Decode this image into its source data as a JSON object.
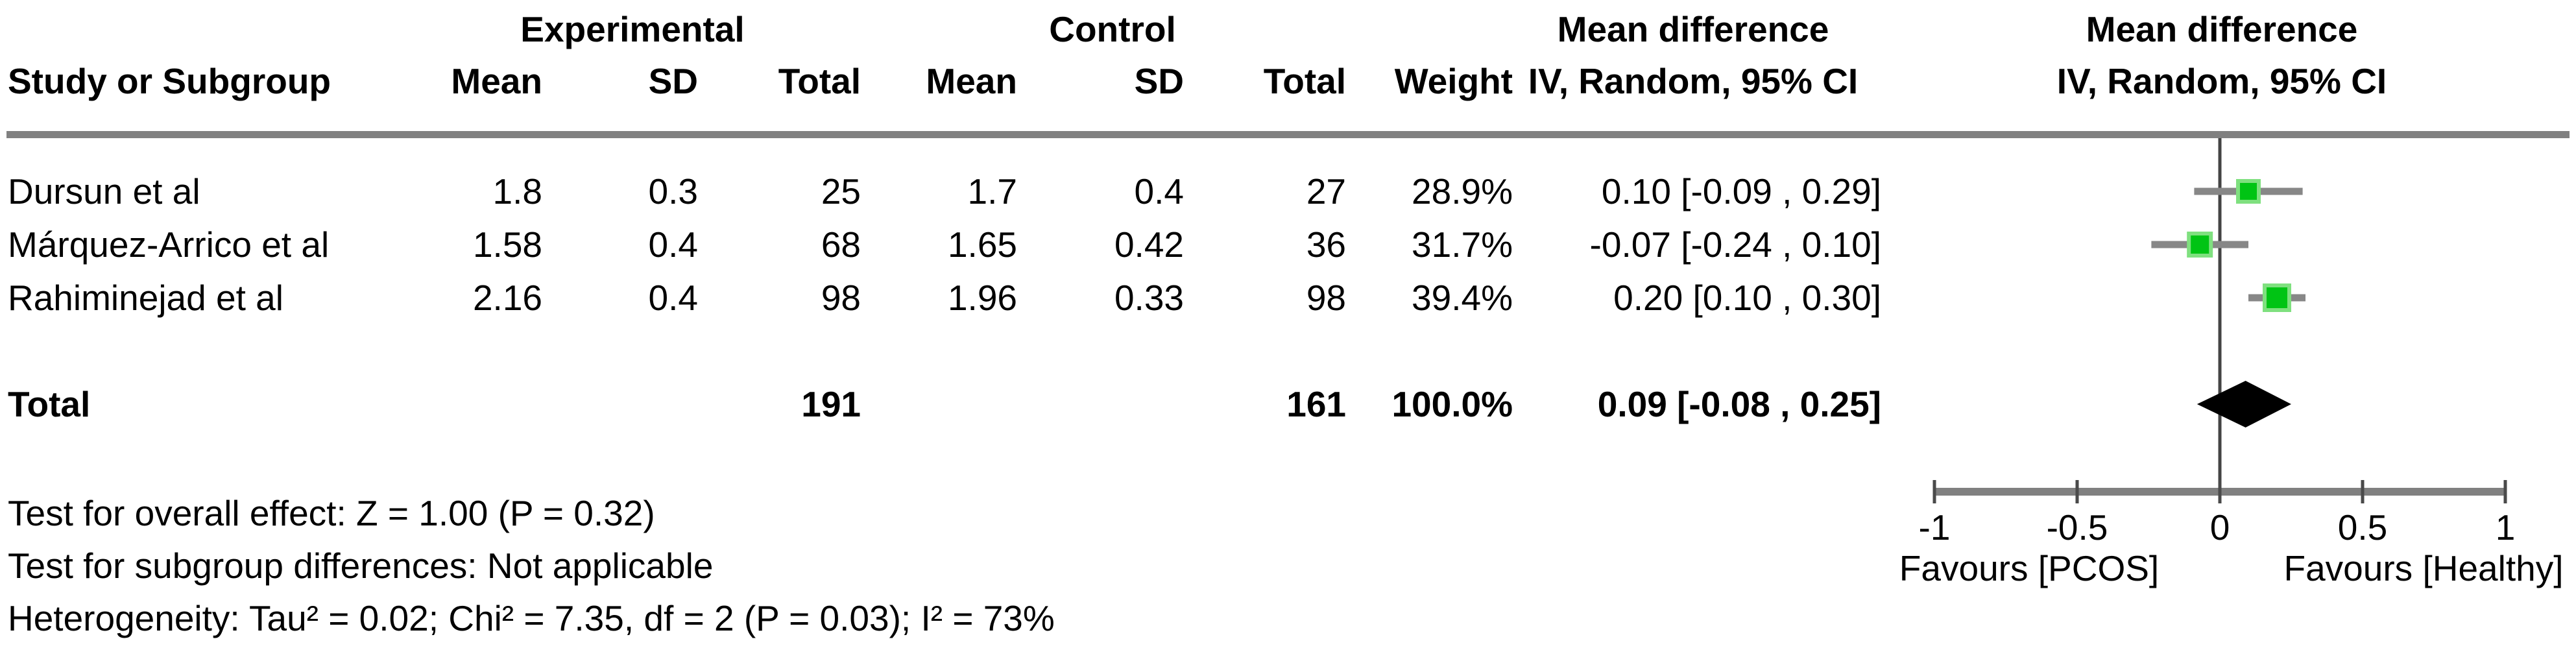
{
  "table": {
    "group_headers": {
      "experimental": "Experimental",
      "control": "Control",
      "mean_difference_text": "Mean difference",
      "mean_difference_plot": "Mean difference"
    },
    "col_headers": {
      "study": "Study or Subgroup",
      "exp_mean": "Mean",
      "exp_sd": "SD",
      "exp_total": "Total",
      "ctrl_mean": "Mean",
      "ctrl_sd": "SD",
      "ctrl_total": "Total",
      "weight": "Weight",
      "iv_text": "IV, Random, 95% CI",
      "iv_plot": "IV, Random, 95% CI"
    },
    "rows": [
      {
        "study": "Dursun et al",
        "exp_mean": "1.8",
        "exp_sd": "0.3",
        "exp_total": "25",
        "ctrl_mean": "1.7",
        "ctrl_sd": "0.4",
        "ctrl_total": "27",
        "weight": "28.9%",
        "md_ci": "0.10 [-0.09 , 0.29]"
      },
      {
        "study": "Márquez-Arrico et al",
        "exp_mean": "1.58",
        "exp_sd": "0.4",
        "exp_total": "68",
        "ctrl_mean": "1.65",
        "ctrl_sd": "0.42",
        "ctrl_total": "36",
        "weight": "31.7%",
        "md_ci": "-0.07 [-0.24 , 0.10]"
      },
      {
        "study": "Rahiminejad et al",
        "exp_mean": "2.16",
        "exp_sd": "0.4",
        "exp_total": "98",
        "ctrl_mean": "1.96",
        "ctrl_sd": "0.33",
        "ctrl_total": "98",
        "weight": "39.4%",
        "md_ci": "0.20 [0.10 , 0.30]"
      }
    ],
    "total_row": {
      "label": "Total",
      "exp_total": "191",
      "ctrl_total": "161",
      "weight": "100.0%",
      "md_ci": "0.09 [-0.08 , 0.25]"
    },
    "footnotes": [
      "Test for overall effect: Z = 1.00 (P = 0.32)",
      "Test for subgroup differences: Not applicable",
      "Heterogeneity: Tau² = 0.02; Chi² = 7.35, df = 2 (P = 0.03); I² = 73%"
    ]
  },
  "chart_data": {
    "type": "forest",
    "effect_measure": "Mean difference",
    "model": "IV, Random, 95% CI",
    "studies": [
      {
        "name": "Dursun et al",
        "estimate": 0.1,
        "ci_low": -0.09,
        "ci_high": 0.29,
        "weight_pct": 28.9
      },
      {
        "name": "Márquez-Arrico et al",
        "estimate": -0.07,
        "ci_low": -0.24,
        "ci_high": 0.1,
        "weight_pct": 31.7
      },
      {
        "name": "Rahiminejad et al",
        "estimate": 0.2,
        "ci_low": 0.1,
        "ci_high": 0.3,
        "weight_pct": 39.4
      }
    ],
    "total": {
      "estimate": 0.09,
      "ci_low": -0.08,
      "ci_high": 0.25
    },
    "axis": {
      "min": -1,
      "max": 1,
      "ticks": [
        -1,
        -0.5,
        0,
        0.5,
        1
      ],
      "tick_labels": [
        "-1",
        "-0.5",
        "0",
        "0.5",
        "1"
      ]
    },
    "favours_left": "Favours [PCOS]",
    "favours_right": "Favours [Healthy]",
    "colors": {
      "square": "#00C414",
      "square_halo": "#7FE07F",
      "ci_line": "#878787",
      "axis_bar": "#808080",
      "tick": "#4A4A4A",
      "zero_line": "#444444",
      "diamond": "#000000",
      "divider": "#808080"
    }
  }
}
